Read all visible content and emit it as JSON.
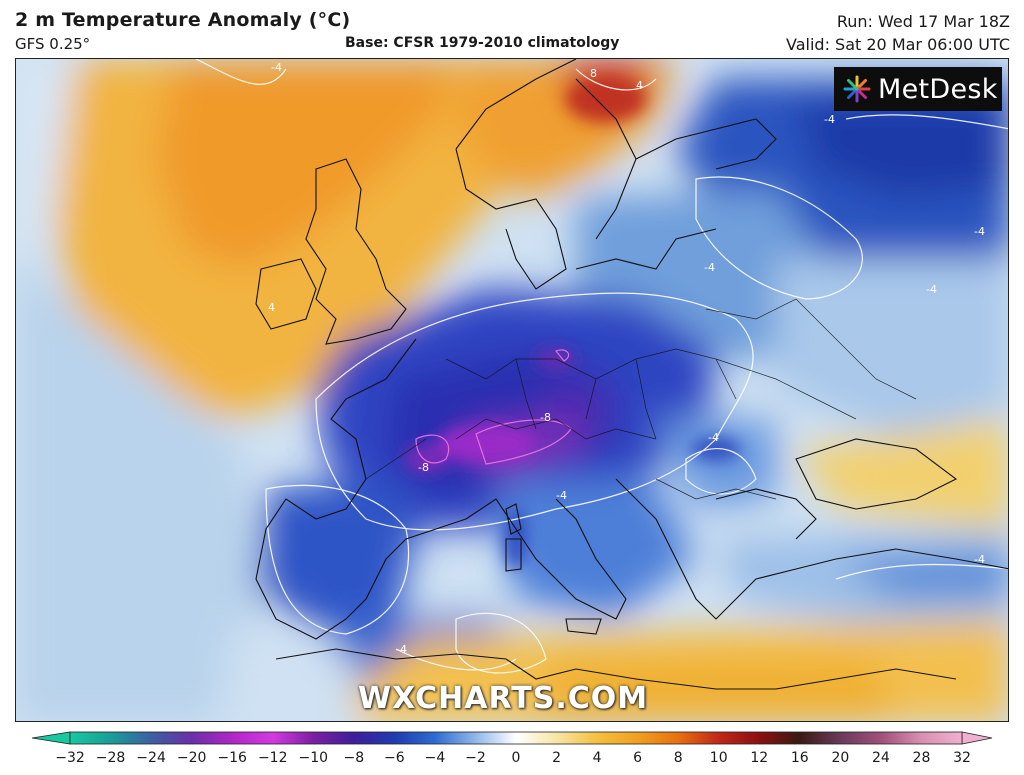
{
  "header": {
    "title": "2 m Temperature Anomaly (°C)",
    "model": "GFS 0.25°",
    "base": "Base: CFSR 1979-2010 climatology",
    "run": "Run: Wed 17 Mar 18Z",
    "valid": "Valid: Sat 20 Mar 06:00 UTC"
  },
  "logo": {
    "text": "MetDesk",
    "icon": "starburst-logo-icon"
  },
  "watermark": "WXCHARTS.COM",
  "map": {
    "region": "Europe",
    "contour_labels": [
      "-4",
      "-4",
      "-4",
      "-4",
      "-4",
      "-4",
      "-8",
      "-8",
      "-4",
      "-4",
      "4",
      "8",
      "4",
      "-4"
    ]
  },
  "colorbar": {
    "ticks": [
      "−32",
      "−28",
      "−24",
      "−20",
      "−16",
      "−12",
      "−10",
      "−8",
      "−6",
      "−4",
      "−2",
      "0",
      "2",
      "4",
      "6",
      "8",
      "10",
      "12",
      "16",
      "20",
      "24",
      "28",
      "32"
    ],
    "colors": [
      "#18c9a0",
      "#1a9e98",
      "#3b5fa3",
      "#6a2fa8",
      "#b026c8",
      "#d23ae0",
      "#7b1fa2",
      "#3d1f9a",
      "#1f3bb0",
      "#2f6bd0",
      "#8fb8e8",
      "#ffffff",
      "#f6e6a4",
      "#f4c040",
      "#f0a020",
      "#e87010",
      "#c02818",
      "#8a1010",
      "#3a1a14",
      "#6a3a5a",
      "#a0507a",
      "#d890b0",
      "#f2b0d0"
    ]
  }
}
